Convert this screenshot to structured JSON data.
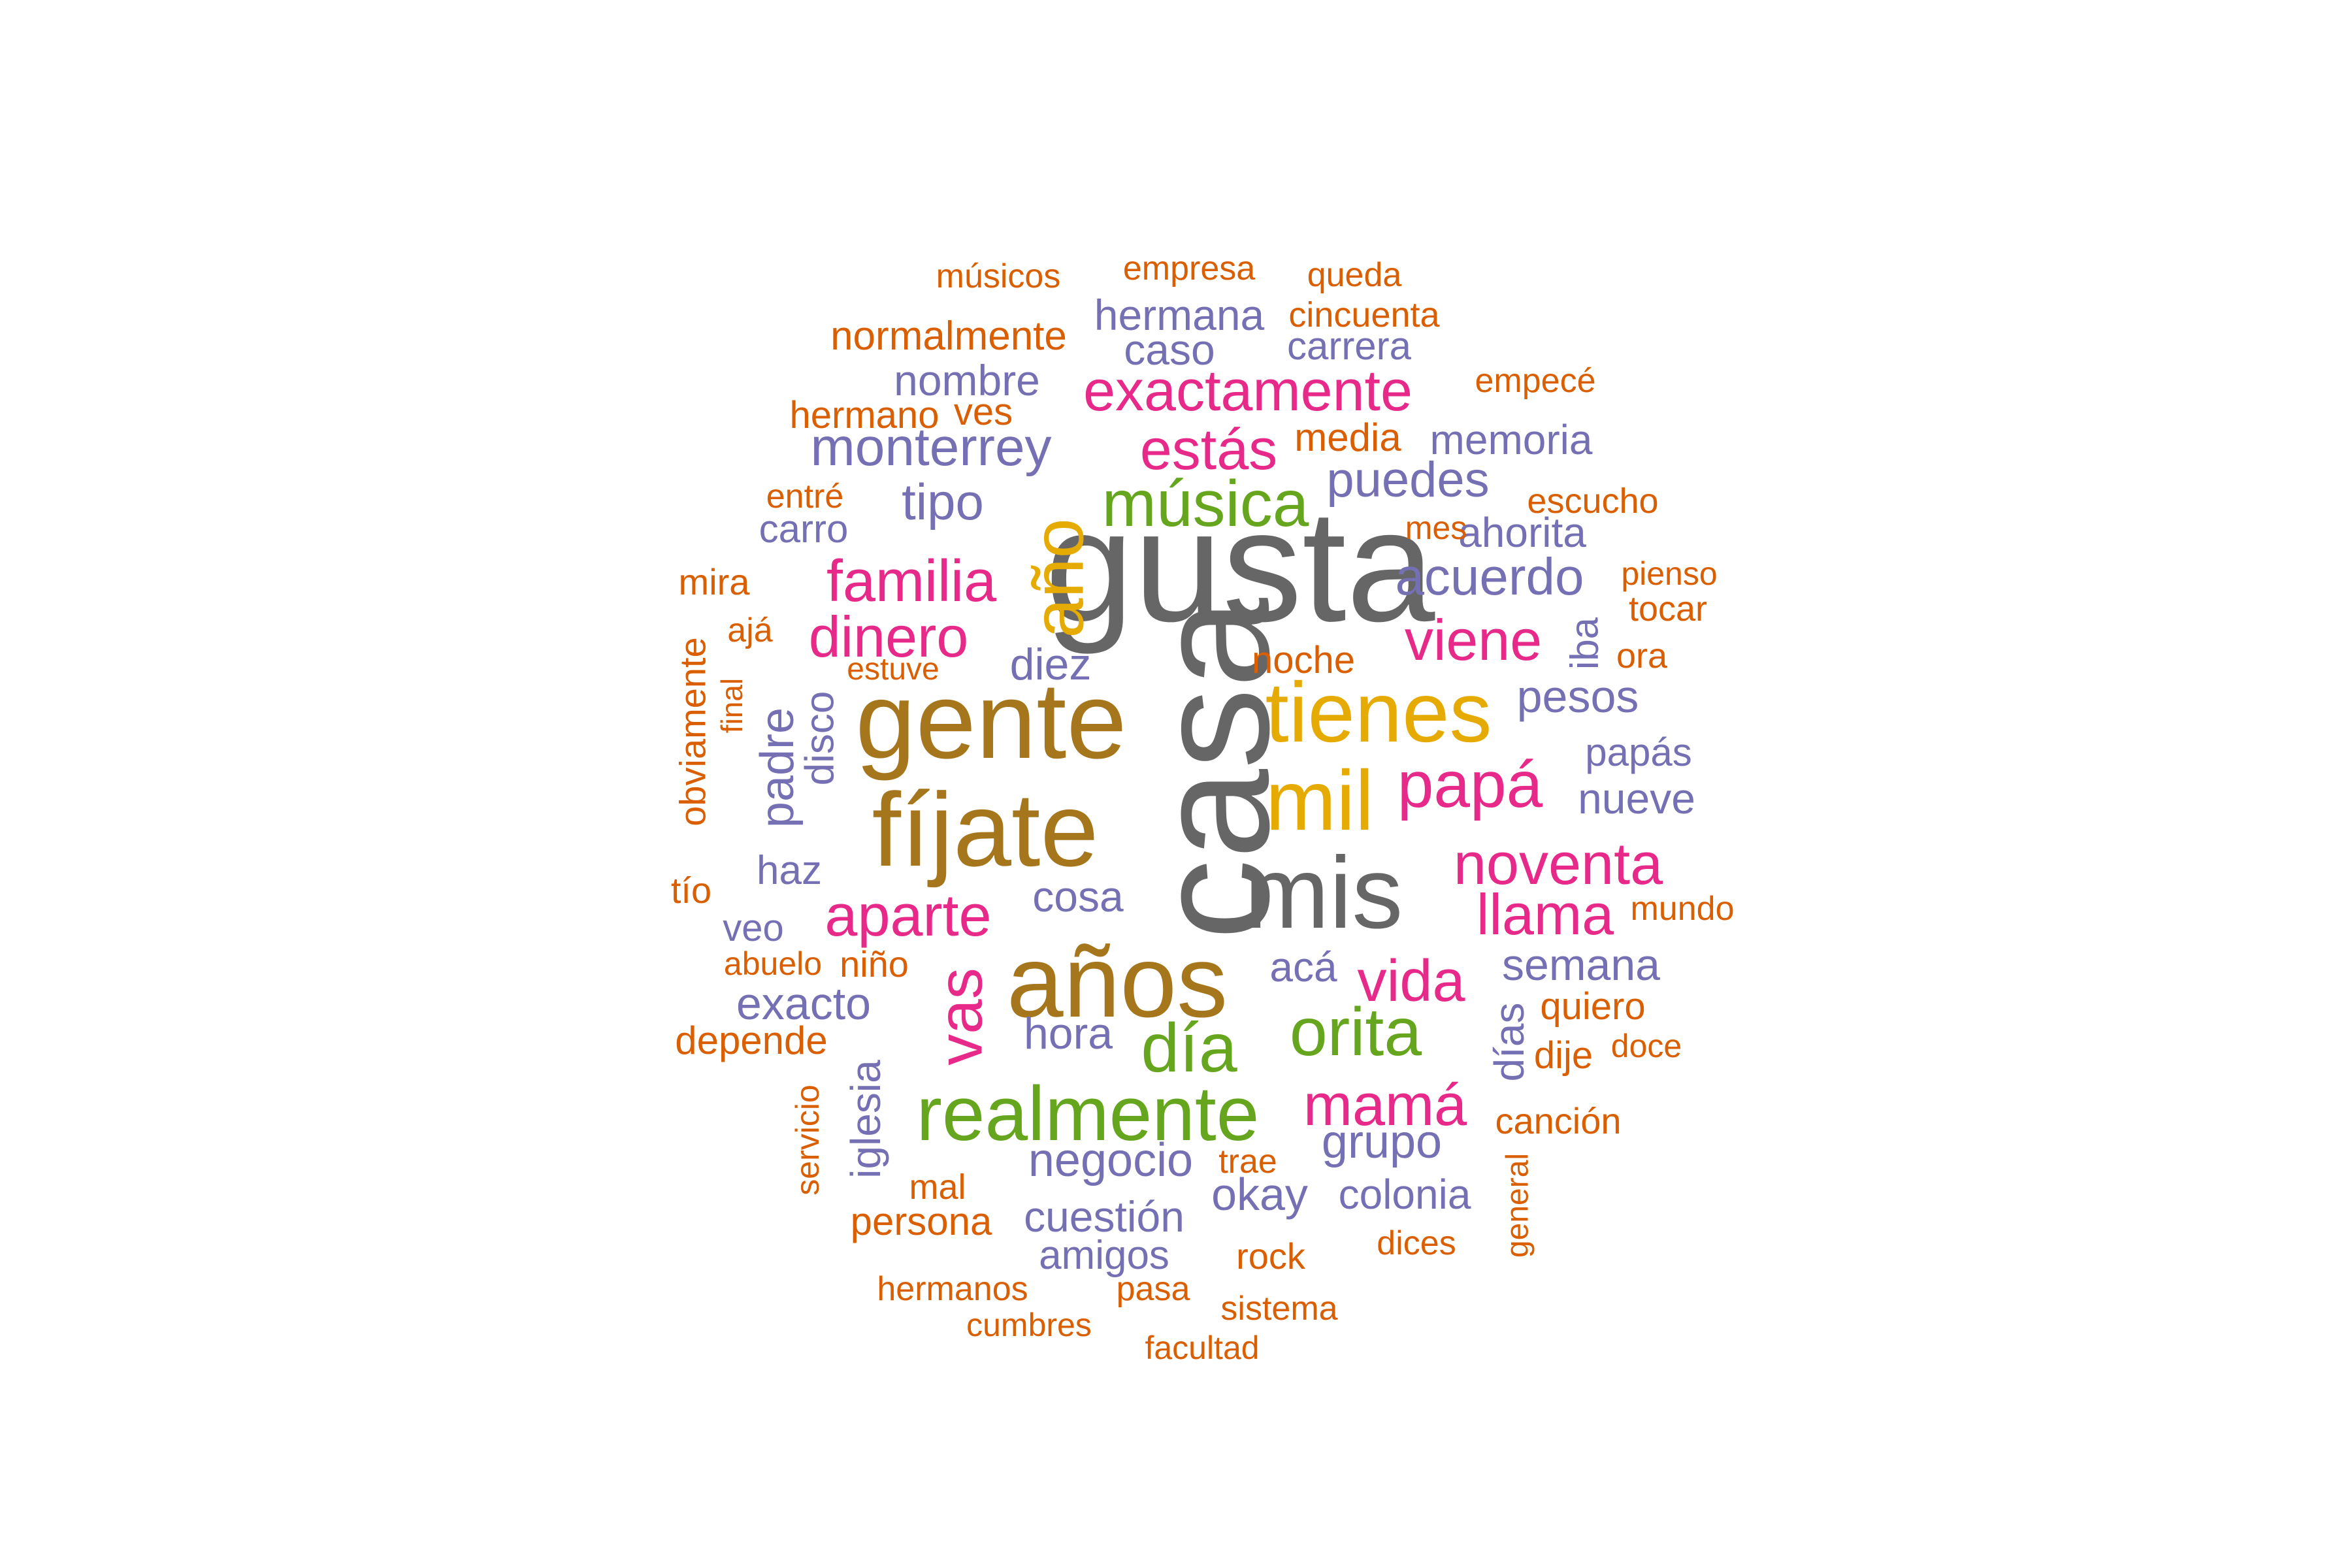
{
  "palette": {
    "grey": "#666666",
    "brown": "#A6761D",
    "gold": "#E6AB02",
    "green": "#66A61E",
    "magenta": "#E7298A",
    "purple": "#7570B3",
    "orange": "#D95F02"
  },
  "words": [
    {
      "text": "gusta",
      "color": "grey"
    },
    {
      "text": "casa",
      "color": "grey"
    },
    {
      "text": "mis",
      "color": "grey"
    },
    {
      "text": "gente",
      "color": "brown"
    },
    {
      "text": "fíjate",
      "color": "brown"
    },
    {
      "text": "años",
      "color": "brown"
    },
    {
      "text": "año",
      "color": "gold"
    },
    {
      "text": "tienes",
      "color": "gold"
    },
    {
      "text": "mil",
      "color": "gold"
    },
    {
      "text": "música",
      "color": "green"
    },
    {
      "text": "realmente",
      "color": "green"
    },
    {
      "text": "orita",
      "color": "green"
    },
    {
      "text": "día",
      "color": "green"
    },
    {
      "text": "exactamente",
      "color": "magenta"
    },
    {
      "text": "estás",
      "color": "magenta"
    },
    {
      "text": "familia",
      "color": "magenta"
    },
    {
      "text": "dinero",
      "color": "magenta"
    },
    {
      "text": "viene",
      "color": "magenta"
    },
    {
      "text": "papá",
      "color": "magenta"
    },
    {
      "text": "noventa",
      "color": "magenta"
    },
    {
      "text": "llama",
      "color": "magenta"
    },
    {
      "text": "aparte",
      "color": "magenta"
    },
    {
      "text": "vida",
      "color": "magenta"
    },
    {
      "text": "mamá",
      "color": "magenta"
    },
    {
      "text": "vas",
      "color": "magenta"
    },
    {
      "text": "hermana",
      "color": "purple"
    },
    {
      "text": "caso",
      "color": "purple"
    },
    {
      "text": "carrera",
      "color": "purple"
    },
    {
      "text": "nombre",
      "color": "purple"
    },
    {
      "text": "monterrey",
      "color": "purple"
    },
    {
      "text": "memoria",
      "color": "purple"
    },
    {
      "text": "puedes",
      "color": "purple"
    },
    {
      "text": "tipo",
      "color": "purple"
    },
    {
      "text": "carro",
      "color": "purple"
    },
    {
      "text": "ahorita",
      "color": "purple"
    },
    {
      "text": "acuerdo",
      "color": "purple"
    },
    {
      "text": "diez",
      "color": "purple"
    },
    {
      "text": "iba",
      "color": "purple"
    },
    {
      "text": "pesos",
      "color": "purple"
    },
    {
      "text": "padre",
      "color": "purple"
    },
    {
      "text": "disco",
      "color": "purple"
    },
    {
      "text": "papás",
      "color": "purple"
    },
    {
      "text": "nueve",
      "color": "purple"
    },
    {
      "text": "haz",
      "color": "purple"
    },
    {
      "text": "cosa",
      "color": "purple"
    },
    {
      "text": "veo",
      "color": "purple"
    },
    {
      "text": "semana",
      "color": "purple"
    },
    {
      "text": "acá",
      "color": "purple"
    },
    {
      "text": "exacto",
      "color": "purple"
    },
    {
      "text": "hora",
      "color": "purple"
    },
    {
      "text": "días",
      "color": "purple"
    },
    {
      "text": "iglesia",
      "color": "purple"
    },
    {
      "text": "grupo",
      "color": "purple"
    },
    {
      "text": "negocio",
      "color": "purple"
    },
    {
      "text": "okay",
      "color": "purple"
    },
    {
      "text": "colonia",
      "color": "purple"
    },
    {
      "text": "cuestión",
      "color": "purple"
    },
    {
      "text": "amigos",
      "color": "purple"
    },
    {
      "text": "músicos",
      "color": "orange"
    },
    {
      "text": "empresa",
      "color": "orange"
    },
    {
      "text": "queda",
      "color": "orange"
    },
    {
      "text": "cincuenta",
      "color": "orange"
    },
    {
      "text": "normalmente",
      "color": "orange"
    },
    {
      "text": "empecé",
      "color": "orange"
    },
    {
      "text": "hermano",
      "color": "orange"
    },
    {
      "text": "ves",
      "color": "orange"
    },
    {
      "text": "media",
      "color": "orange"
    },
    {
      "text": "entré",
      "color": "orange"
    },
    {
      "text": "escucho",
      "color": "orange"
    },
    {
      "text": "mes",
      "color": "orange"
    },
    {
      "text": "mira",
      "color": "orange"
    },
    {
      "text": "pienso",
      "color": "orange"
    },
    {
      "text": "ajá",
      "color": "orange"
    },
    {
      "text": "tocar",
      "color": "orange"
    },
    {
      "text": "estuve",
      "color": "orange"
    },
    {
      "text": "noche",
      "color": "orange"
    },
    {
      "text": "ora",
      "color": "orange"
    },
    {
      "text": "obviamente",
      "color": "orange"
    },
    {
      "text": "final",
      "color": "orange"
    },
    {
      "text": "tío",
      "color": "orange"
    },
    {
      "text": "mundo",
      "color": "orange"
    },
    {
      "text": "abuelo",
      "color": "orange"
    },
    {
      "text": "niño",
      "color": "orange"
    },
    {
      "text": "quiero",
      "color": "orange"
    },
    {
      "text": "depende",
      "color": "orange"
    },
    {
      "text": "dije",
      "color": "orange"
    },
    {
      "text": "doce",
      "color": "orange"
    },
    {
      "text": "servicio",
      "color": "orange"
    },
    {
      "text": "canción",
      "color": "orange"
    },
    {
      "text": "trae",
      "color": "orange"
    },
    {
      "text": "mal",
      "color": "orange"
    },
    {
      "text": "persona",
      "color": "orange"
    },
    {
      "text": "general",
      "color": "orange"
    },
    {
      "text": "rock",
      "color": "orange"
    },
    {
      "text": "dices",
      "color": "orange"
    },
    {
      "text": "hermanos",
      "color": "orange"
    },
    {
      "text": "pasa",
      "color": "orange"
    },
    {
      "text": "sistema",
      "color": "orange"
    },
    {
      "text": "cumbres",
      "color": "orange"
    },
    {
      "text": "facultad",
      "color": "orange"
    }
  ]
}
